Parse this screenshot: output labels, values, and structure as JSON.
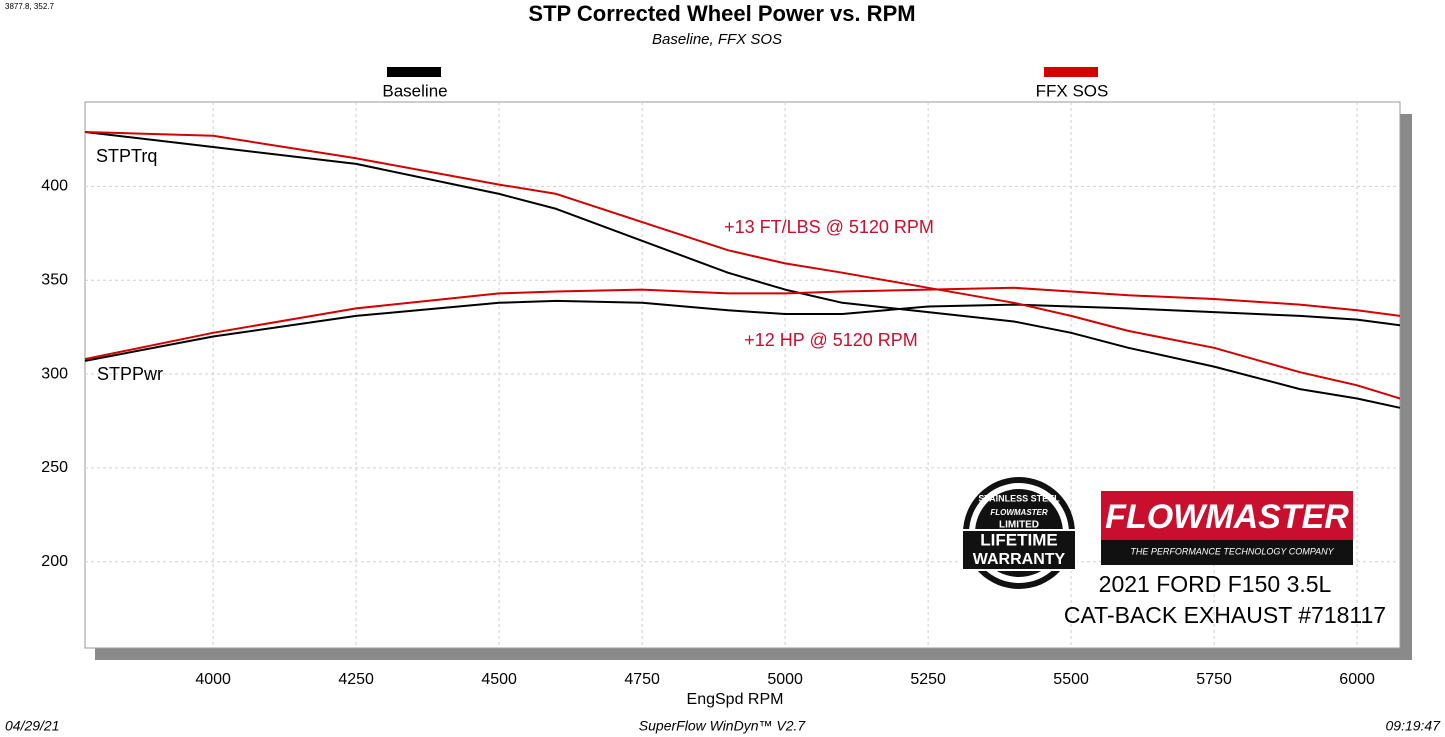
{
  "cursor_readout": "3877.8, 352.7",
  "chart_data": {
    "type": "line",
    "title": "STP Corrected Wheel Power vs. RPM",
    "subtitle": "Baseline, FFX SOS",
    "x_label": "EngSpd  RPM",
    "x": [
      3776,
      4000,
      4250,
      4500,
      4600,
      4750,
      4900,
      5000,
      5100,
      5250,
      5400,
      5500,
      5600,
      5750,
      5900,
      6000,
      6075
    ],
    "series": [
      {
        "name": "Baseline",
        "color": "#000000",
        "torque": [
          429,
          421,
          412,
          396,
          388,
          371,
          354,
          345,
          338,
          333,
          328,
          322,
          314,
          304,
          292,
          287,
          282
        ],
        "power": [
          307,
          320,
          331,
          338,
          339,
          338,
          334,
          332,
          332,
          336,
          337,
          336,
          335,
          333,
          331,
          329,
          326
        ]
      },
      {
        "name": "FFX SOS",
        "color": "#d40000",
        "torque": [
          429,
          427,
          415,
          401,
          396,
          381,
          366,
          359,
          354,
          346,
          338,
          331,
          323,
          314,
          301,
          294,
          287
        ],
        "power": [
          308,
          322,
          335,
          343,
          344,
          345,
          343,
          343,
          344,
          345,
          346,
          344,
          342,
          340,
          337,
          334,
          331
        ]
      }
    ],
    "curve_labels": {
      "torque": "STPTrq",
      "power": "STPPwr"
    },
    "annotations": [
      {
        "text": "+13 FT/LBS @ 5120 RPM",
        "color": "#c8102e"
      },
      {
        "text": "+12 HP @ 5120 RPM",
        "color": "#c8102e"
      }
    ],
    "xlim": [
      3776,
      6075
    ],
    "ylim": [
      154,
      445
    ],
    "xticks": [
      4000,
      4250,
      4500,
      4750,
      5000,
      5250,
      5500,
      5750,
      6000
    ],
    "yticks": [
      200,
      250,
      300,
      350,
      400
    ],
    "grid": true
  },
  "branding": {
    "logo": "FLOWMASTER",
    "tagline": "THE PERFORMANCE TECHNOLOGY COMPANY",
    "badge": [
      "STAINLESS STEEL",
      "FLOWMASTER",
      "LIMITED",
      "LIFETIME",
      "WARRANTY"
    ],
    "vehicle": [
      "2021 FORD F150 3.5L",
      "CAT-BACK EXHAUST #718117"
    ]
  },
  "footer": {
    "date": "04/29/21",
    "software": "SuperFlow WinDyn™ V2.7",
    "time": "09:19:47"
  }
}
